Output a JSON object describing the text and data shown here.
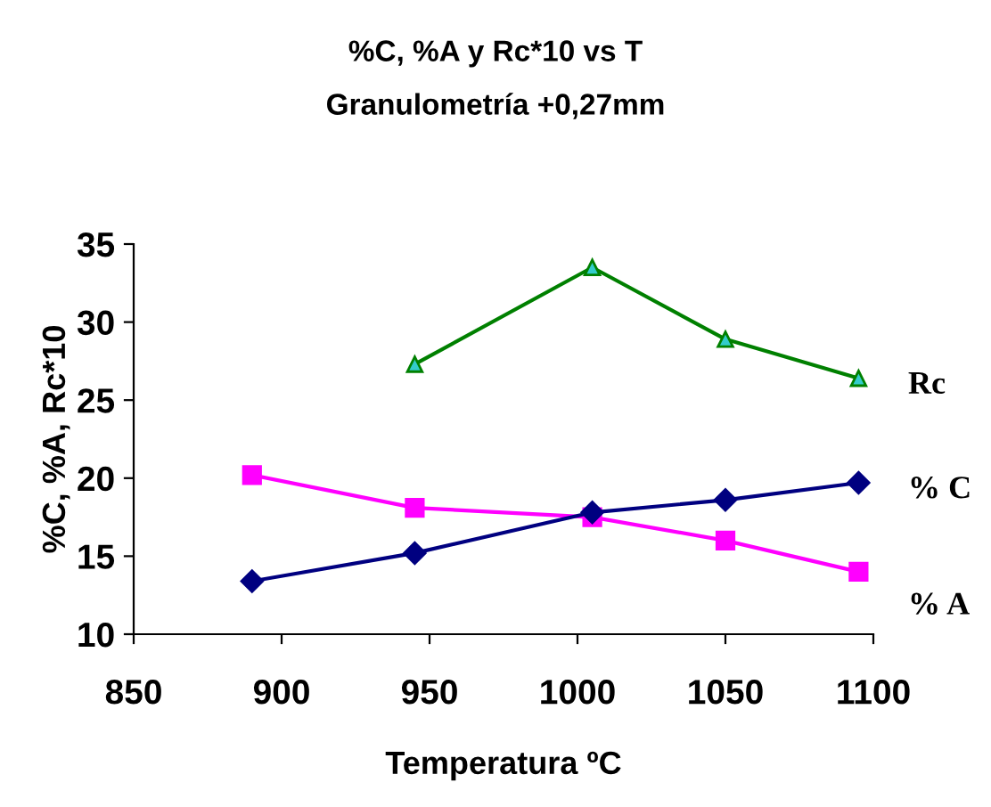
{
  "chart_data": {
    "type": "line",
    "title": "%C, %A y Rc*10 vs T",
    "subtitle": "Granulometría +0,27mm",
    "xlabel": "Temperatura ºC",
    "ylabel": "%C, %A, Rc*10",
    "xlim": [
      850,
      1100
    ],
    "xticks": [
      850,
      900,
      950,
      1000,
      1050,
      1100
    ],
    "ylim": [
      10,
      35
    ],
    "yticks": [
      10,
      15,
      20,
      25,
      30,
      35
    ],
    "grid": false,
    "legend": false,
    "series": [
      {
        "name": "Rc",
        "color": "#008000",
        "marker": "triangle",
        "x": [
          945,
          1005,
          1050,
          1095
        ],
        "values": [
          27.3,
          33.5,
          28.9,
          26.4
        ]
      },
      {
        "name": "% C",
        "color": "#000080",
        "marker": "diamond",
        "x": [
          890,
          945,
          1005,
          1050,
          1095
        ],
        "values": [
          13.4,
          15.2,
          17.8,
          18.6,
          19.7
        ]
      },
      {
        "name": "% A",
        "color": "#ff00ff",
        "marker": "square",
        "x": [
          890,
          945,
          1005,
          1050,
          1095
        ],
        "values": [
          20.2,
          18.1,
          17.5,
          16.0,
          14.0
        ]
      }
    ]
  }
}
